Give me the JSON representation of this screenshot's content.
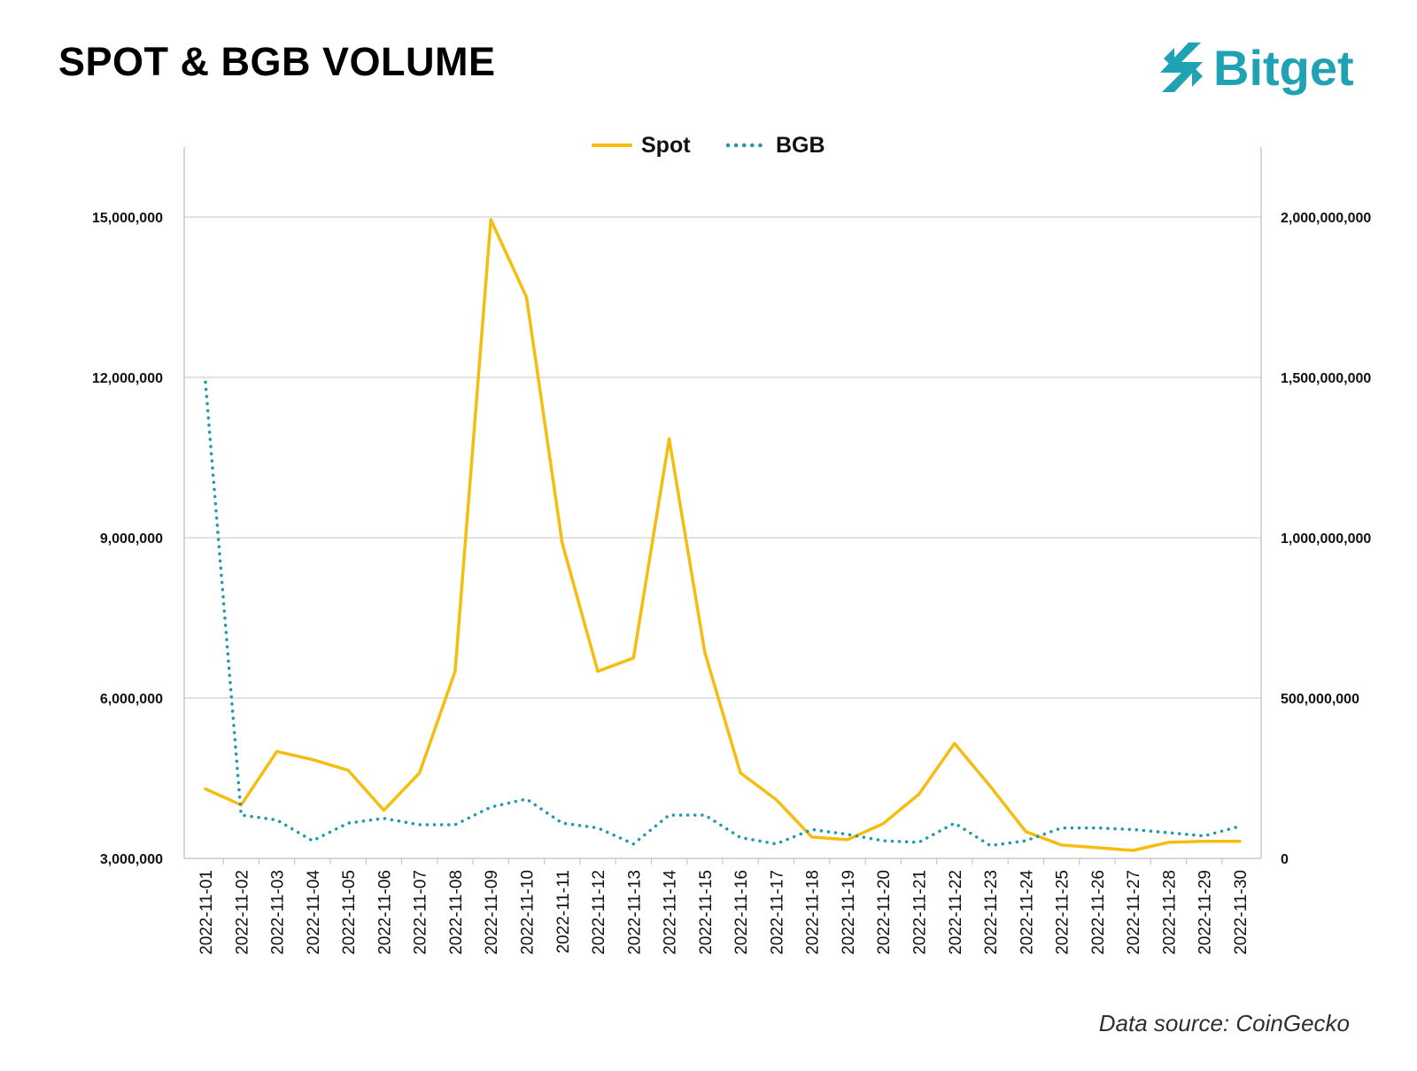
{
  "header": {
    "title": "SPOT & BGB VOLUME",
    "brand": "Bitget",
    "brand_color": "#1fa3b4"
  },
  "footer": {
    "source": "Data source: CoinGecko"
  },
  "chart_data": {
    "type": "line",
    "title": "SPOT & BGB VOLUME",
    "x": [
      "2022-11-01",
      "2022-11-02",
      "2022-11-03",
      "2022-11-04",
      "2022-11-05",
      "2022-11-06",
      "2022-11-07",
      "2022-11-08",
      "2022-11-09",
      "2022-11-10",
      "2022-11-11",
      "2022-11-12",
      "2022-11-13",
      "2022-11-14",
      "2022-11-15",
      "2022-11-16",
      "2022-11-17",
      "2022-11-18",
      "2022-11-19",
      "2022-11-20",
      "2022-11-21",
      "2022-11-22",
      "2022-11-23",
      "2022-11-24",
      "2022-11-25",
      "2022-11-26",
      "2022-11-27",
      "2022-11-28",
      "2022-11-29",
      "2022-11-30"
    ],
    "series": [
      {
        "name": "Spot",
        "axis": "left",
        "style": "solid",
        "color": "#f5bd0f",
        "values": [
          4300000,
          4000000,
          5000000,
          4850000,
          4650000,
          3900000,
          4600000,
          6500000,
          14950000,
          13500000,
          8900000,
          6500000,
          6750000,
          10850000,
          6850000,
          4600000,
          4100000,
          3400000,
          3350000,
          3650000,
          4200000,
          5150000,
          4350000,
          3500000,
          3250000,
          3200000,
          3150000,
          3300000,
          3320000,
          3320000
        ]
      },
      {
        "name": "BGB",
        "axis": "right",
        "style": "dotted",
        "color": "#1d9aab",
        "values": [
          1485000000,
          135000000,
          120000000,
          55000000,
          110000000,
          125000000,
          105000000,
          105000000,
          160000000,
          185000000,
          110000000,
          95000000,
          45000000,
          135000000,
          135000000,
          65000000,
          45000000,
          90000000,
          75000000,
          55000000,
          50000000,
          110000000,
          40000000,
          55000000,
          95000000,
          95000000,
          90000000,
          80000000,
          70000000,
          100000000
        ]
      }
    ],
    "y_left": {
      "ylim": [
        3000000,
        15000000
      ],
      "ticks": [
        "3,000,000",
        "6,000,000",
        "9,000,000",
        "12,000,000",
        "15,000,000"
      ],
      "tick_values": [
        3000000,
        6000000,
        9000000,
        12000000,
        15000000
      ]
    },
    "y_right": {
      "ylim": [
        0,
        2000000000
      ],
      "ticks": [
        "0",
        "500,000,000",
        "1,000,000,000",
        "1,500,000,000",
        "2,000,000,000"
      ],
      "tick_values": [
        0,
        500000000,
        1000000000,
        1500000000,
        2000000000
      ]
    },
    "grid": "horizontal",
    "legend": "top-center",
    "xlabel": "",
    "ylabel": ""
  }
}
